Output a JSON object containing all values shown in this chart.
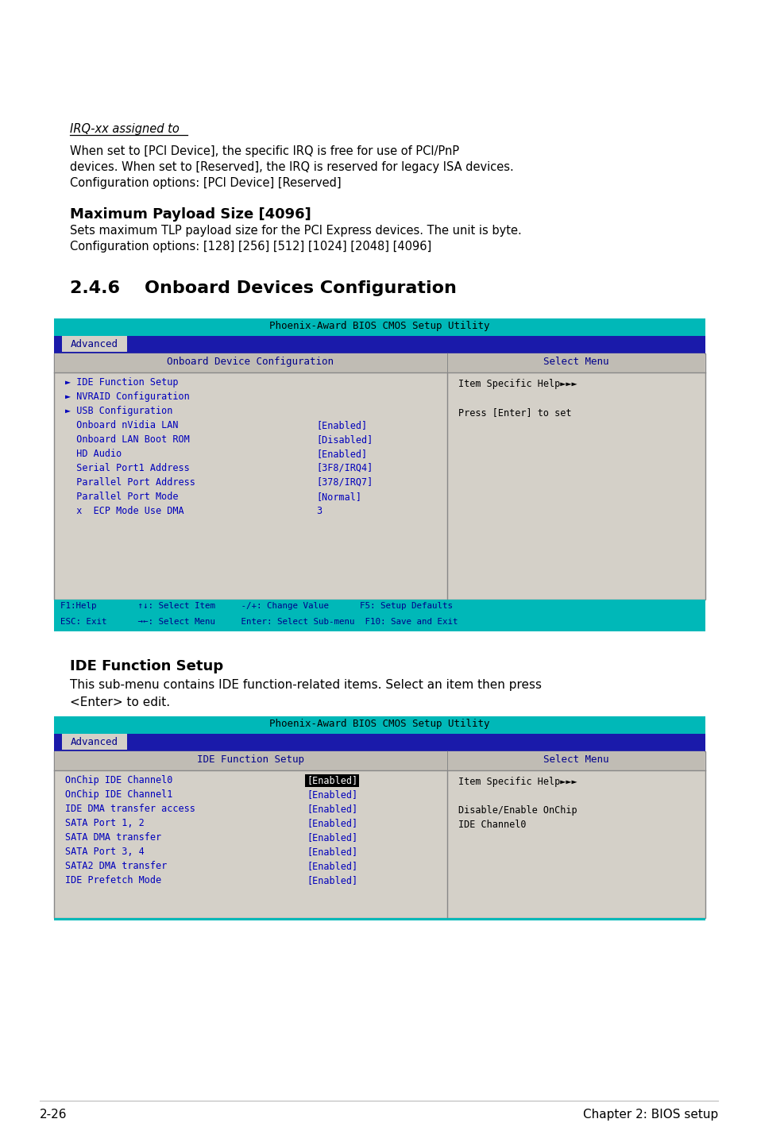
{
  "bg_color": "#ffffff",
  "irq_label": "IRQ-xx assigned to",
  "irq_para": "When set to [PCI Device], the specific IRQ is free for use of PCI/PnP\ndevices. When set to [Reserved], the IRQ is reserved for legacy ISA devices.\nConfiguration options: [PCI Device] [Reserved]",
  "section_title": "Maximum Payload Size [4096]",
  "section_para": "Sets maximum TLP payload size for the PCI Express devices. The unit is byte.\nConfiguration options: [128] [256] [512] [1024] [2048] [4096]",
  "section2_num": "2.4.6",
  "section2_title": "    Onboard Devices Configuration",
  "bios1_title": "Phoenix-Award BIOS CMOS Setup Utility",
  "bios1_tab": "Advanced",
  "bios1_left_header": "Onboard Device Configuration",
  "bios1_right_header": "Select Menu",
  "bios1_items": [
    {
      "arrow": true,
      "text": "IDE Function Setup",
      "value": ""
    },
    {
      "arrow": true,
      "text": "NVRAID Configuration",
      "value": ""
    },
    {
      "arrow": true,
      "text": "USB Configuration",
      "value": ""
    },
    {
      "arrow": false,
      "text": "Onboard nVidia LAN",
      "value": "[Enabled]"
    },
    {
      "arrow": false,
      "text": "Onboard LAN Boot ROM",
      "value": "[Disabled]"
    },
    {
      "arrow": false,
      "text": "HD Audio",
      "value": "[Enabled]"
    },
    {
      "arrow": false,
      "text": "Serial Port1 Address",
      "value": "[3F8/IRQ4]"
    },
    {
      "arrow": false,
      "text": "Parallel Port Address",
      "value": "[378/IRQ7]"
    },
    {
      "arrow": false,
      "text": "Parallel Port Mode",
      "value": "[Normal]"
    },
    {
      "arrow": false,
      "text": "x  ECP Mode Use DMA",
      "value": "3"
    }
  ],
  "bios1_right_text1": "Item Specific Help►►►",
  "bios1_right_text2": "Press [Enter] to set",
  "bios1_footer1": "F1:Help        ↑↓: Select Item     -/+: Change Value      F5: Setup Defaults",
  "bios1_footer2": "ESC: Exit      →←: Select Menu     Enter: Select Sub-menu  F10: Save and Exit",
  "ide_section_title": "IDE Function Setup",
  "ide_section_para1": "This sub-menu contains IDE function-related items. Select an item then press",
  "ide_section_para2": "<Enter> to edit.",
  "bios2_title": "Phoenix-Award BIOS CMOS Setup Utility",
  "bios2_tab": "Advanced",
  "bios2_left_header": "IDE Function Setup",
  "bios2_right_header": "Select Menu",
  "bios2_items": [
    {
      "highlight": true,
      "text": "OnChip IDE Channel0",
      "value": "[Enabled]"
    },
    {
      "highlight": false,
      "text": "OnChip IDE Channel1",
      "value": "[Enabled]"
    },
    {
      "highlight": false,
      "text": "IDE DMA transfer access",
      "value": "[Enabled]"
    },
    {
      "highlight": false,
      "text": "SATA Port 1, 2",
      "value": "[Enabled]"
    },
    {
      "highlight": false,
      "text": "SATA DMA transfer",
      "value": "[Enabled]"
    },
    {
      "highlight": false,
      "text": "SATA Port 3, 4",
      "value": "[Enabled]"
    },
    {
      "highlight": false,
      "text": "SATA2 DMA transfer",
      "value": "[Enabled]"
    },
    {
      "highlight": false,
      "text": "IDE Prefetch Mode",
      "value": "[Enabled]"
    }
  ],
  "bios2_right_text1": "Item Specific Help►►►",
  "bios2_right_text2": "Disable/Enable OnChip",
  "bios2_right_text3": "IDE Channel0",
  "footer_left": "2-26",
  "footer_right": "Chapter 2: BIOS setup",
  "cyan_color": "#00b8b8",
  "dark_blue_color": "#00008b",
  "tab_blue": "#1a1aaa",
  "item_blue": "#0000bb",
  "light_gray_bg": "#d4d0c8",
  "header_gray": "#c0bcb4",
  "border_color": "#888888"
}
